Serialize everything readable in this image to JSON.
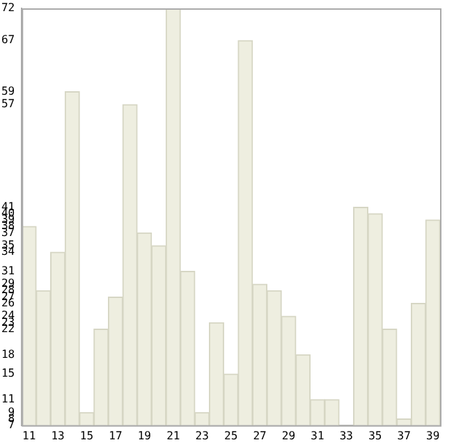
{
  "chart_data": {
    "type": "bar",
    "categories": [
      "11",
      null,
      "13",
      null,
      "15",
      null,
      "17",
      null,
      "19",
      null,
      "21",
      null,
      "23",
      null,
      "25",
      null,
      "27",
      null,
      "29",
      null,
      "31",
      null,
      "33",
      null,
      "35",
      null,
      "37",
      null,
      "39"
    ],
    "values": [
      38,
      28,
      34,
      59,
      9,
      22,
      27,
      57,
      37,
      35,
      72,
      31,
      9,
      23,
      15,
      67,
      29,
      28,
      24,
      18,
      11,
      11,
      7,
      41,
      40,
      22,
      8,
      26,
      39
    ],
    "color": "#eeeee0",
    "ylim": [
      7,
      72
    ],
    "yticks": [
      7,
      8,
      9,
      11,
      15,
      18,
      22,
      23,
      24,
      26,
      27,
      28,
      29,
      31,
      34,
      35,
      37,
      38,
      39,
      40,
      41,
      57,
      59,
      67,
      72
    ],
    "grid": false,
    "legend": false
  }
}
